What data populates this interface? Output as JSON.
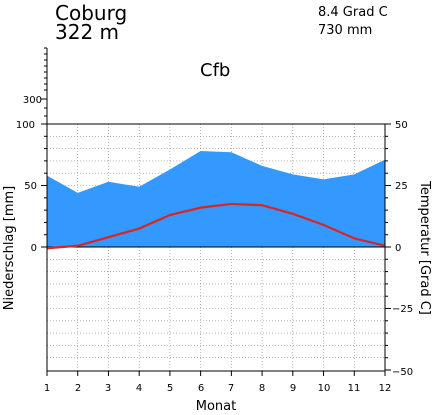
{
  "chart_data": {
    "type": "area",
    "station": {
      "name": "Coburg",
      "elevation": "322 m",
      "mean_temperature": "8.4 Grad C",
      "annual_precipitation": "730 mm",
      "climate_class": "Cfb"
    },
    "categories": [
      "1",
      "2",
      "3",
      "4",
      "5",
      "6",
      "7",
      "8",
      "9",
      "10",
      "11",
      "12"
    ],
    "series": [
      {
        "name": "Niederschlag",
        "unit": "mm",
        "axis": "left",
        "values": [
          58,
          44,
          53,
          49,
          63,
          78,
          77,
          66,
          59,
          55,
          59,
          71
        ],
        "color": "#3399ff"
      },
      {
        "name": "Temperatur",
        "unit": "Grad C",
        "axis": "right",
        "values": [
          -0.5,
          0.5,
          4.0,
          7.5,
          13.0,
          16.0,
          17.5,
          17.0,
          13.5,
          9.0,
          3.5,
          0.5
        ],
        "color": "#dd2222"
      }
    ],
    "xlabel": "Monat",
    "ylabel_left": "Niederschlag [mm]",
    "ylabel_right": "Temperatur [Grad C]",
    "left_ticks": [
      "100",
      "50",
      "0"
    ],
    "left_upper_ticks": [
      "300"
    ],
    "right_ticks": [
      "50",
      "25",
      "0",
      "−25",
      "−50"
    ],
    "ylim_left": [
      -100,
      100
    ],
    "ylim_right": [
      -50,
      50
    ],
    "grid": true
  }
}
